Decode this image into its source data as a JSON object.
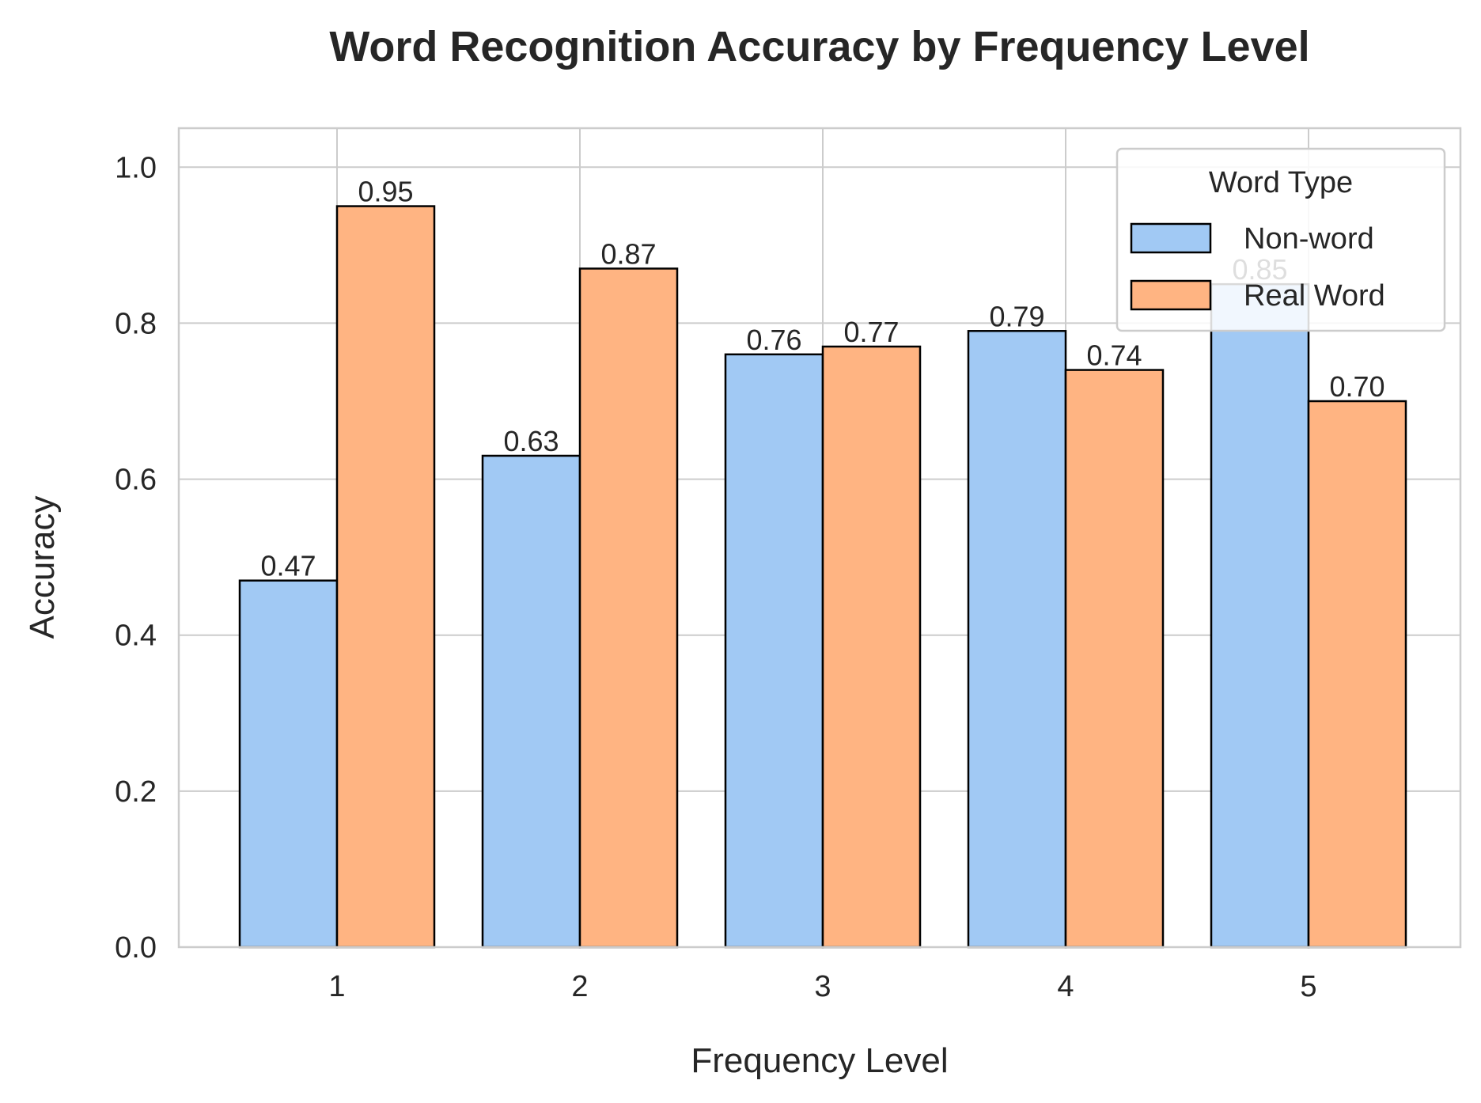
{
  "chart_data": {
    "type": "bar",
    "title": "Word Recognition Accuracy by Frequency Level",
    "xlabel": "Frequency Level",
    "ylabel": "Accuracy",
    "categories": [
      "1",
      "2",
      "3",
      "4",
      "5"
    ],
    "series": [
      {
        "name": "Non-word",
        "values": [
          0.47,
          0.63,
          0.76,
          0.79,
          0.85
        ],
        "labels": [
          "0.47",
          "0.63",
          "0.76",
          "0.79",
          "0.85"
        ],
        "color": "#a1c9f4"
      },
      {
        "name": "Real Word",
        "values": [
          0.95,
          0.87,
          0.77,
          0.74,
          0.7
        ],
        "labels": [
          "0.95",
          "0.87",
          "0.77",
          "0.74",
          "0.70"
        ],
        "color": "#ffb482"
      }
    ],
    "ylim": [
      0,
      1.05
    ],
    "yticks": [
      "0.0",
      "0.2",
      "0.4",
      "0.6",
      "0.8",
      "1.0"
    ],
    "grid": true,
    "legend": {
      "title": "Word Type",
      "placement": "top-right"
    }
  }
}
